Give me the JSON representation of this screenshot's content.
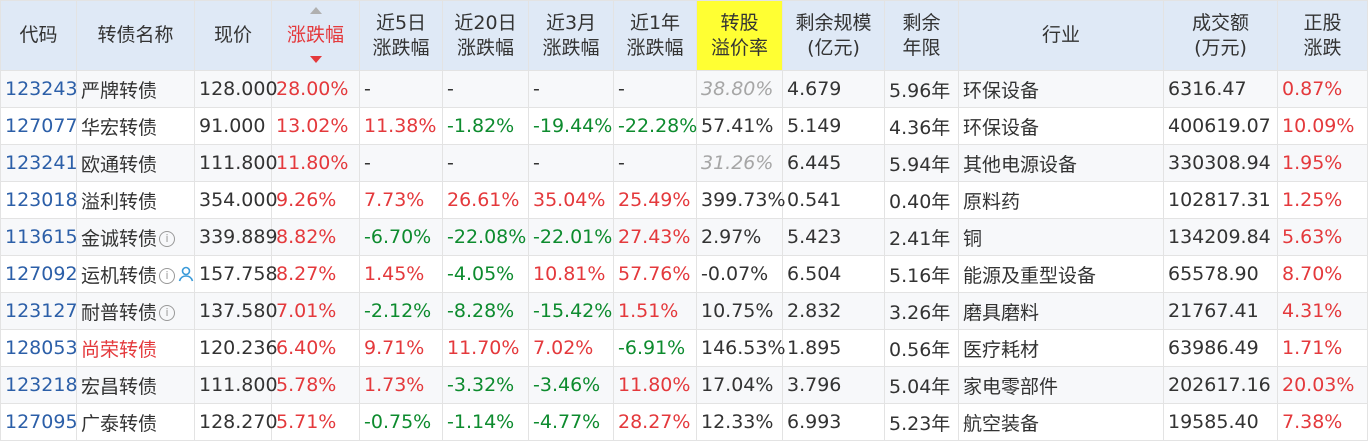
{
  "headers": {
    "code": "代码",
    "name": "转债名称",
    "price": "现价",
    "change": "涨跌幅",
    "chg5d": [
      "近5日",
      "涨跌幅"
    ],
    "chg20d": [
      "近20日",
      "涨跌幅"
    ],
    "chg3m": [
      "近3月",
      "涨跌幅"
    ],
    "chg1y": [
      "近1年",
      "涨跌幅"
    ],
    "premium": [
      "转股",
      "溢价率"
    ],
    "remain_size": [
      "剩余规模",
      "(亿元)"
    ],
    "remain_years": [
      "剩余",
      "年限"
    ],
    "industry": "行业",
    "turnover": [
      "成交额",
      "(万元)"
    ],
    "stock_change": [
      "正股",
      "涨跌"
    ]
  },
  "sort": {
    "column": "change",
    "direction": "desc"
  },
  "colors": {
    "up": "#e4393c",
    "down": "#0d8b2e",
    "code": "#2c5fa8",
    "header_bg": "#dfe9f6",
    "highlight_header": "#ffff33"
  },
  "rows": [
    {
      "code": "123243",
      "name": "严牌转债",
      "name_red": false,
      "info": false,
      "user": false,
      "price": "128.000",
      "change": "28.00%",
      "change_dir": "up",
      "chg5d": "-",
      "chg5d_dir": "none",
      "chg20d": "-",
      "chg20d_dir": "none",
      "chg3m": "-",
      "chg3m_dir": "none",
      "chg1y": "-",
      "chg1y_dir": "none",
      "premium": "38.80%",
      "premium_dim": true,
      "remain_size": "4.679",
      "remain_years": "5.96年",
      "industry": "环保设备",
      "turnover": "6316.47",
      "stock_change": "0.87%",
      "stock_dir": "up"
    },
    {
      "code": "127077",
      "name": "华宏转债",
      "name_red": false,
      "info": false,
      "user": false,
      "price": "91.000",
      "change": "13.02%",
      "change_dir": "up",
      "chg5d": "11.38%",
      "chg5d_dir": "up",
      "chg20d": "-1.82%",
      "chg20d_dir": "down",
      "chg3m": "-19.44%",
      "chg3m_dir": "down",
      "chg1y": "-22.28%",
      "chg1y_dir": "down",
      "premium": "57.41%",
      "premium_dim": false,
      "remain_size": "5.149",
      "remain_years": "4.36年",
      "industry": "环保设备",
      "turnover": "400619.07",
      "stock_change": "10.09%",
      "stock_dir": "up"
    },
    {
      "code": "123241",
      "name": "欧通转债",
      "name_red": false,
      "info": false,
      "user": false,
      "price": "111.800",
      "change": "11.80%",
      "change_dir": "up",
      "chg5d": "-",
      "chg5d_dir": "none",
      "chg20d": "-",
      "chg20d_dir": "none",
      "chg3m": "-",
      "chg3m_dir": "none",
      "chg1y": "-",
      "chg1y_dir": "none",
      "premium": "31.26%",
      "premium_dim": true,
      "remain_size": "6.445",
      "remain_years": "5.94年",
      "industry": "其他电源设备",
      "turnover": "330308.94",
      "stock_change": "1.95%",
      "stock_dir": "up"
    },
    {
      "code": "123018",
      "name": "溢利转债",
      "name_red": false,
      "info": false,
      "user": false,
      "price": "354.000",
      "change": "9.26%",
      "change_dir": "up",
      "chg5d": "7.73%",
      "chg5d_dir": "up",
      "chg20d": "26.61%",
      "chg20d_dir": "up",
      "chg3m": "35.04%",
      "chg3m_dir": "up",
      "chg1y": "25.49%",
      "chg1y_dir": "up",
      "premium": "399.73%",
      "premium_dim": false,
      "remain_size": "0.541",
      "remain_years": "0.40年",
      "industry": "原料药",
      "turnover": "102817.31",
      "stock_change": "1.25%",
      "stock_dir": "up"
    },
    {
      "code": "113615",
      "name": "金诚转债",
      "name_red": false,
      "info": true,
      "user": false,
      "price": "339.889",
      "change": "8.82%",
      "change_dir": "up",
      "chg5d": "-6.70%",
      "chg5d_dir": "down",
      "chg20d": "-22.08%",
      "chg20d_dir": "down",
      "chg3m": "-22.01%",
      "chg3m_dir": "down",
      "chg1y": "27.43%",
      "chg1y_dir": "up",
      "premium": "2.97%",
      "premium_dim": false,
      "remain_size": "5.423",
      "remain_years": "2.41年",
      "industry": "铜",
      "turnover": "134209.84",
      "stock_change": "5.63%",
      "stock_dir": "up"
    },
    {
      "code": "127092",
      "name": "运机转债",
      "name_red": false,
      "info": true,
      "user": true,
      "price": "157.758",
      "change": "8.27%",
      "change_dir": "up",
      "chg5d": "1.45%",
      "chg5d_dir": "up",
      "chg20d": "-4.05%",
      "chg20d_dir": "down",
      "chg3m": "10.81%",
      "chg3m_dir": "up",
      "chg1y": "57.76%",
      "chg1y_dir": "up",
      "premium": "-0.07%",
      "premium_dim": false,
      "remain_size": "6.504",
      "remain_years": "5.16年",
      "industry": "能源及重型设备",
      "turnover": "65578.90",
      "stock_change": "8.70%",
      "stock_dir": "up"
    },
    {
      "code": "123127",
      "name": "耐普转债",
      "name_red": false,
      "info": true,
      "user": false,
      "price": "137.580",
      "change": "7.01%",
      "change_dir": "up",
      "chg5d": "-2.12%",
      "chg5d_dir": "down",
      "chg20d": "-8.28%",
      "chg20d_dir": "down",
      "chg3m": "-15.42%",
      "chg3m_dir": "down",
      "chg1y": "1.51%",
      "chg1y_dir": "up",
      "premium": "10.75%",
      "premium_dim": false,
      "remain_size": "2.832",
      "remain_years": "3.26年",
      "industry": "磨具磨料",
      "turnover": "21767.41",
      "stock_change": "4.31%",
      "stock_dir": "up"
    },
    {
      "code": "128053",
      "name": "尚荣转债",
      "name_red": true,
      "info": false,
      "user": false,
      "price": "120.236",
      "change": "6.40%",
      "change_dir": "up",
      "chg5d": "9.71%",
      "chg5d_dir": "up",
      "chg20d": "11.70%",
      "chg20d_dir": "up",
      "chg3m": "7.02%",
      "chg3m_dir": "up",
      "chg1y": "-6.91%",
      "chg1y_dir": "down",
      "premium": "146.53%",
      "premium_dim": false,
      "remain_size": "1.895",
      "remain_years": "0.56年",
      "industry": "医疗耗材",
      "turnover": "63986.49",
      "stock_change": "1.71%",
      "stock_dir": "up"
    },
    {
      "code": "123218",
      "name": "宏昌转债",
      "name_red": false,
      "info": false,
      "user": false,
      "price": "111.800",
      "change": "5.78%",
      "change_dir": "up",
      "chg5d": "1.73%",
      "chg5d_dir": "up",
      "chg20d": "-3.32%",
      "chg20d_dir": "down",
      "chg3m": "-3.46%",
      "chg3m_dir": "down",
      "chg1y": "11.80%",
      "chg1y_dir": "up",
      "premium": "17.04%",
      "premium_dim": false,
      "remain_size": "3.796",
      "remain_years": "5.04年",
      "industry": "家电零部件",
      "turnover": "202617.16",
      "stock_change": "20.03%",
      "stock_dir": "up"
    },
    {
      "code": "127095",
      "name": "广泰转债",
      "name_red": false,
      "info": false,
      "user": false,
      "price": "128.270",
      "change": "5.71%",
      "change_dir": "up",
      "chg5d": "-0.75%",
      "chg5d_dir": "down",
      "chg20d": "-1.14%",
      "chg20d_dir": "down",
      "chg3m": "-4.77%",
      "chg3m_dir": "down",
      "chg1y": "28.27%",
      "chg1y_dir": "up",
      "premium": "12.33%",
      "premium_dim": false,
      "remain_size": "6.993",
      "remain_years": "5.23年",
      "industry": "航空装备",
      "turnover": "19585.40",
      "stock_change": "7.38%",
      "stock_dir": "up"
    }
  ]
}
